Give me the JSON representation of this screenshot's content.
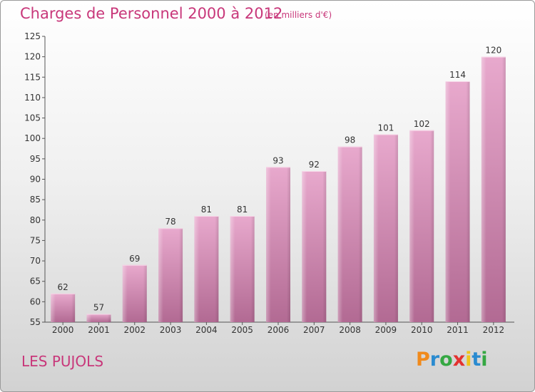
{
  "header": {
    "title": "Charges de Personnel 2000 à 2012",
    "subtitle": "(en milliers d'€)"
  },
  "footer": {
    "commune": "LES PUJOLS",
    "logo": "Proxiti"
  },
  "colors": {
    "title": "#c8377a",
    "bar_top": "#e8a9cd",
    "bar_bottom": "#b26a93",
    "logo": [
      "#f08a1c",
      "#2a8bd0",
      "#35a843",
      "#e3322f",
      "#f0c419",
      "#2a8bd0",
      "#35a843"
    ]
  },
  "chart_data": {
    "type": "bar",
    "title": "Charges de Personnel 2000 à 2012",
    "subtitle": "(en milliers d'€)",
    "xlabel": "",
    "ylabel": "",
    "categories": [
      "2000",
      "2001",
      "2002",
      "2003",
      "2004",
      "2005",
      "2006",
      "2007",
      "2008",
      "2009",
      "2010",
      "2011",
      "2012"
    ],
    "values": [
      62,
      57,
      69,
      78,
      81,
      81,
      93,
      92,
      98,
      101,
      102,
      114,
      120
    ],
    "ylim": [
      55,
      125
    ],
    "yticks": [
      55,
      60,
      65,
      70,
      75,
      80,
      85,
      90,
      95,
      100,
      105,
      110,
      115,
      120,
      125
    ],
    "grid": false,
    "data_labels": true
  }
}
